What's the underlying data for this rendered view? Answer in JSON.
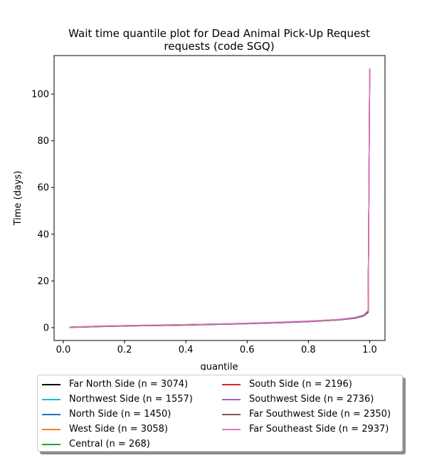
{
  "chart_data": {
    "type": "line",
    "title": "Wait time quantile plot for Dead Animal Pick-Up Request requests (code SGQ)",
    "title_lines": [
      "Wait time quantile plot for Dead Animal Pick-Up Request",
      "requests (code SGQ)"
    ],
    "xlabel": "quantile",
    "ylabel": "Time (days)",
    "xlim": [
      -0.03,
      1.05
    ],
    "ylim": [
      -5.5,
      116.5
    ],
    "xticks": [
      0.0,
      0.2,
      0.4,
      0.6,
      0.8,
      1.0
    ],
    "xtick_labels": [
      "0.0",
      "0.2",
      "0.4",
      "0.6",
      "0.8",
      "1.0"
    ],
    "yticks": [
      0,
      20,
      40,
      60,
      80,
      100
    ],
    "ytick_labels": [
      "0",
      "20",
      "40",
      "60",
      "80",
      "100"
    ],
    "legend_position": "below",
    "series": [
      {
        "name": "Far North Side (n = 3074)",
        "color": "#000000",
        "points": [
          [
            0.02,
            0.1
          ],
          [
            0.1,
            0.4
          ],
          [
            0.2,
            0.7
          ],
          [
            0.3,
            0.9
          ],
          [
            0.4,
            1.1
          ],
          [
            0.5,
            1.4
          ],
          [
            0.6,
            1.7
          ],
          [
            0.7,
            2.1
          ],
          [
            0.8,
            2.6
          ],
          [
            0.9,
            3.3
          ],
          [
            0.95,
            4.0
          ],
          [
            0.98,
            5.0
          ],
          [
            0.995,
            6.5
          ],
          [
            1.0,
            110
          ]
        ]
      },
      {
        "name": "Northwest Side (n = 1557)",
        "color": "#17becf",
        "points": [
          [
            0.02,
            0.2
          ],
          [
            0.1,
            0.5
          ],
          [
            0.2,
            0.8
          ],
          [
            0.3,
            1.0
          ],
          [
            0.4,
            1.2
          ],
          [
            0.5,
            1.5
          ],
          [
            0.6,
            1.8
          ],
          [
            0.7,
            2.2
          ],
          [
            0.8,
            2.7
          ],
          [
            0.9,
            3.4
          ],
          [
            0.95,
            4.1
          ],
          [
            0.98,
            5.1
          ],
          [
            0.995,
            6.8
          ],
          [
            1.0,
            109
          ]
        ]
      },
      {
        "name": "North Side (n = 1450)",
        "color": "#1f77b4",
        "points": [
          [
            0.02,
            0.1
          ],
          [
            0.1,
            0.4
          ],
          [
            0.2,
            0.7
          ],
          [
            0.3,
            0.9
          ],
          [
            0.4,
            1.2
          ],
          [
            0.5,
            1.4
          ],
          [
            0.6,
            1.7
          ],
          [
            0.7,
            2.1
          ],
          [
            0.8,
            2.6
          ],
          [
            0.9,
            3.3
          ],
          [
            0.95,
            4.0
          ],
          [
            0.98,
            5.0
          ],
          [
            0.995,
            6.6
          ],
          [
            1.0,
            108
          ]
        ]
      },
      {
        "name": "West Side (n = 3058)",
        "color": "#ff7f0e",
        "points": [
          [
            0.02,
            0.2
          ],
          [
            0.1,
            0.5
          ],
          [
            0.2,
            0.8
          ],
          [
            0.3,
            1.0
          ],
          [
            0.4,
            1.3
          ],
          [
            0.5,
            1.5
          ],
          [
            0.6,
            1.8
          ],
          [
            0.7,
            2.2
          ],
          [
            0.8,
            2.7
          ],
          [
            0.9,
            3.4
          ],
          [
            0.95,
            4.2
          ],
          [
            0.98,
            5.2
          ],
          [
            0.995,
            7.0
          ],
          [
            1.0,
            110
          ]
        ]
      },
      {
        "name": "Central (n = 268)",
        "color": "#2ca02c",
        "points": [
          [
            0.02,
            0.2
          ],
          [
            0.1,
            0.5
          ],
          [
            0.2,
            0.8
          ],
          [
            0.3,
            1.0
          ],
          [
            0.4,
            1.2
          ],
          [
            0.5,
            1.5
          ],
          [
            0.6,
            1.8
          ],
          [
            0.7,
            2.2
          ],
          [
            0.8,
            2.7
          ],
          [
            0.9,
            3.5
          ],
          [
            0.95,
            4.3
          ],
          [
            0.98,
            5.3
          ],
          [
            0.995,
            7.2
          ],
          [
            1.0,
            107
          ]
        ]
      },
      {
        "name": "South Side (n = 2196)",
        "color": "#d62728",
        "points": [
          [
            0.02,
            0.2
          ],
          [
            0.1,
            0.5
          ],
          [
            0.2,
            0.8
          ],
          [
            0.3,
            1.0
          ],
          [
            0.4,
            1.3
          ],
          [
            0.5,
            1.5
          ],
          [
            0.6,
            1.8
          ],
          [
            0.7,
            2.2
          ],
          [
            0.8,
            2.7
          ],
          [
            0.9,
            3.4
          ],
          [
            0.95,
            4.2
          ],
          [
            0.98,
            5.2
          ],
          [
            0.995,
            7.0
          ],
          [
            1.0,
            111
          ]
        ]
      },
      {
        "name": "Southwest Side (n = 2736)",
        "color": "#9467bd",
        "points": [
          [
            0.02,
            0.2
          ],
          [
            0.1,
            0.6
          ],
          [
            0.2,
            0.9
          ],
          [
            0.3,
            1.1
          ],
          [
            0.4,
            1.3
          ],
          [
            0.5,
            1.6
          ],
          [
            0.6,
            1.9
          ],
          [
            0.7,
            2.3
          ],
          [
            0.8,
            2.8
          ],
          [
            0.9,
            3.5
          ],
          [
            0.95,
            4.3
          ],
          [
            0.98,
            5.4
          ],
          [
            0.995,
            7.3
          ],
          [
            1.0,
            111
          ]
        ]
      },
      {
        "name": "Far Southwest Side (n = 2350)",
        "color": "#8c564b",
        "points": [
          [
            0.02,
            0.1
          ],
          [
            0.1,
            0.5
          ],
          [
            0.2,
            0.8
          ],
          [
            0.3,
            1.0
          ],
          [
            0.4,
            1.2
          ],
          [
            0.5,
            1.5
          ],
          [
            0.6,
            1.8
          ],
          [
            0.7,
            2.2
          ],
          [
            0.8,
            2.7
          ],
          [
            0.9,
            3.4
          ],
          [
            0.95,
            4.2
          ],
          [
            0.98,
            5.2
          ],
          [
            0.995,
            7.0
          ],
          [
            1.0,
            110
          ]
        ]
      },
      {
        "name": "Far Southeast Side (n = 2937)",
        "color": "#e377c2",
        "points": [
          [
            0.02,
            0.2
          ],
          [
            0.1,
            0.6
          ],
          [
            0.2,
            0.9
          ],
          [
            0.3,
            1.1
          ],
          [
            0.4,
            1.3
          ],
          [
            0.5,
            1.6
          ],
          [
            0.6,
            1.9
          ],
          [
            0.7,
            2.3
          ],
          [
            0.8,
            2.8
          ],
          [
            0.9,
            3.5
          ],
          [
            0.95,
            4.3
          ],
          [
            0.98,
            5.4
          ],
          [
            0.995,
            7.4
          ],
          [
            1.0,
            111
          ]
        ]
      }
    ]
  }
}
